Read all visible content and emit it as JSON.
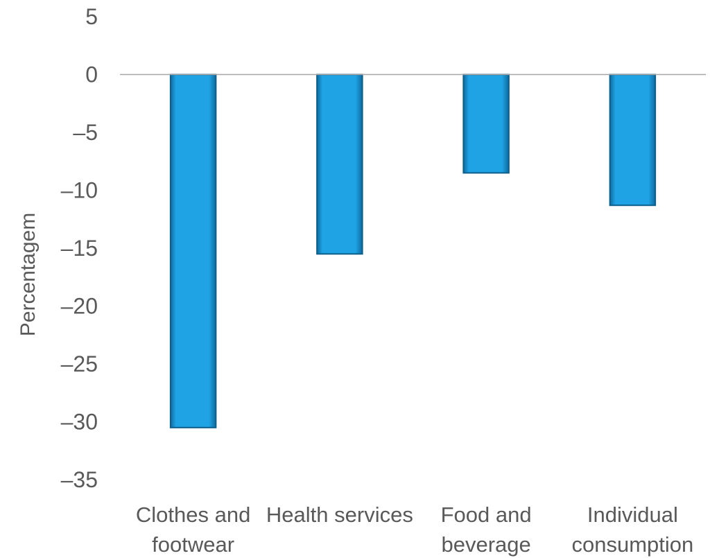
{
  "chart_data": {
    "type": "bar",
    "title": "",
    "xlabel": "",
    "ylabel": "Percentagem",
    "categories": [
      [
        "Clothes and",
        "footwear"
      ],
      [
        "Health services"
      ],
      [
        "Food and",
        "beverage"
      ],
      [
        "Individual",
        "consumption"
      ]
    ],
    "values": [
      -30.5,
      -15.5,
      -8.5,
      -11.3
    ],
    "ylim": [
      -35,
      5
    ],
    "yticks": [
      5,
      0,
      -5,
      -10,
      -15,
      -20,
      -25,
      -30,
      -35
    ],
    "ytick_labels": [
      "5",
      "0",
      "–5",
      "–10",
      "–15",
      "–20",
      "–25",
      "–30",
      "–35"
    ],
    "grid": false,
    "legend": "none",
    "bar_color": "#1fa3e4",
    "bar_edge_color": "#0d5f8c",
    "zero_line_color": "#a6a6a6"
  }
}
